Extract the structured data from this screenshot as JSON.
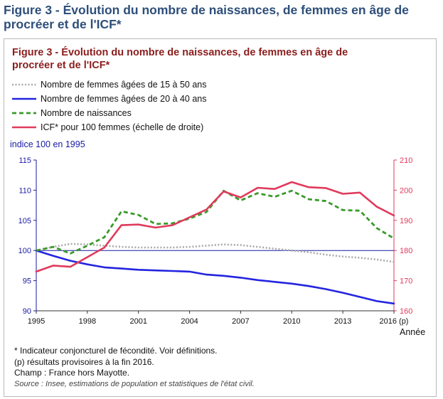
{
  "page": {
    "title": "Figure 3 - Évolution du nombre de naissances, de femmes en âge de procréer et de l'ICF*"
  },
  "figure": {
    "title": "Figure 3 - Évolution du nombre de naissances, de femmes en âge de procréer et de l'ICF*",
    "footnotes": [
      "* Indicateur conjoncturel de fécondité. Voir définitions.",
      "(p) résultats provisoires à la fin 2016.",
      "Champ : France hors Mayotte."
    ],
    "source": "Source : Insee, estimations de population et statistiques de l'état civil."
  },
  "chart_data": {
    "type": "line",
    "left_axis_title": "indice 100 en 1995",
    "xlabel": "Année",
    "x": [
      1995,
      1996,
      1997,
      1998,
      1999,
      2000,
      2001,
      2002,
      2003,
      2004,
      2005,
      2006,
      2007,
      2008,
      2009,
      2010,
      2011,
      2012,
      2013,
      2014,
      2015,
      2016
    ],
    "x_ticks": [
      "1995",
      "1998",
      "2001",
      "2004",
      "2007",
      "2010",
      "2013",
      "2016 (p)"
    ],
    "x_tick_values": [
      1995,
      1998,
      2001,
      2004,
      2007,
      2010,
      2013,
      2016
    ],
    "xlim": [
      1995,
      2016
    ],
    "ylim_left": [
      90,
      115
    ],
    "yticks_left": [
      90,
      95,
      100,
      105,
      110,
      115
    ],
    "ylim_right": [
      160,
      210
    ],
    "yticks_right": [
      160,
      170,
      180,
      190,
      200,
      210
    ],
    "reference_line": 100,
    "grid": false,
    "colors": {
      "left_axis": "#1a1aa6",
      "right_axis": "#e03a5c",
      "reference": "#1a1aa6"
    },
    "series": [
      {
        "name": "Nombre de femmes âgées de 15 à 50 ans",
        "axis": "left",
        "color": "#a9a9a9",
        "dash": "dotted",
        "values": [
          100,
          100.6,
          101.1,
          101.0,
          100.8,
          100.6,
          100.5,
          100.5,
          100.5,
          100.6,
          100.8,
          101.0,
          100.9,
          100.6,
          100.3,
          100.0,
          99.7,
          99.3,
          99.0,
          98.8,
          98.5,
          98.1
        ]
      },
      {
        "name": "Nombre de femmes âgées de 20 à 40 ans",
        "axis": "left",
        "color": "#2424e0",
        "dash": "solid",
        "values": [
          100,
          99.1,
          98.3,
          97.7,
          97.2,
          97.0,
          96.8,
          96.7,
          96.6,
          96.5,
          96.0,
          95.8,
          95.5,
          95.1,
          94.8,
          94.5,
          94.1,
          93.6,
          93.0,
          92.3,
          91.6,
          91.2
        ]
      },
      {
        "name": "Nombre de naissances",
        "axis": "left",
        "color": "#3a9a2a",
        "dash": "dashed",
        "values": [
          100,
          100.6,
          99.5,
          100.8,
          102.2,
          106.5,
          105.9,
          104.4,
          104.5,
          105.3,
          106.4,
          109.9,
          108.3,
          109.5,
          108.9,
          109.9,
          108.5,
          108.2,
          106.7,
          106.6,
          103.7,
          102.0
        ]
      },
      {
        "name": "ICF* pour 100 femmes (échelle de droite)",
        "axis": "right",
        "color": "#e03a5c",
        "dash": "solid",
        "values": [
          173,
          175,
          174.6,
          177.8,
          181.0,
          188.4,
          188.6,
          187.6,
          188.4,
          191.0,
          193.6,
          199.6,
          197.6,
          200.8,
          200.4,
          202.7,
          201.0,
          200.7,
          198.8,
          199.2,
          194.5,
          191.6
        ]
      }
    ]
  }
}
